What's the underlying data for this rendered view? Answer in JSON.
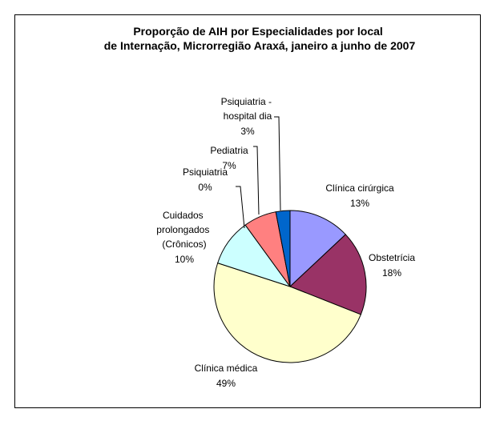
{
  "chart_data": {
    "type": "pie",
    "title": "Proporção de AIH por Especialidades por local de Internação, Microrregião Araxá, janeiro a junho de 2007",
    "categories": [
      "Clínica cirúrgica",
      "Obstetrícia",
      "Clínica médica",
      "Cuidados prolongados (Crônicos)",
      "Psiquiatria",
      "Pediatria",
      "Psiquiatria - hospital dia"
    ],
    "values": [
      13,
      18,
      49,
      10,
      0,
      7,
      3
    ],
    "value_labels": [
      "13%",
      "18%",
      "49%",
      "10%",
      "0%",
      "7%",
      "3%"
    ],
    "colors": [
      "#9999ff",
      "#993366",
      "#ffffcc",
      "#ccffff",
      "#660066",
      "#ff8080",
      "#0066cc"
    ]
  }
}
